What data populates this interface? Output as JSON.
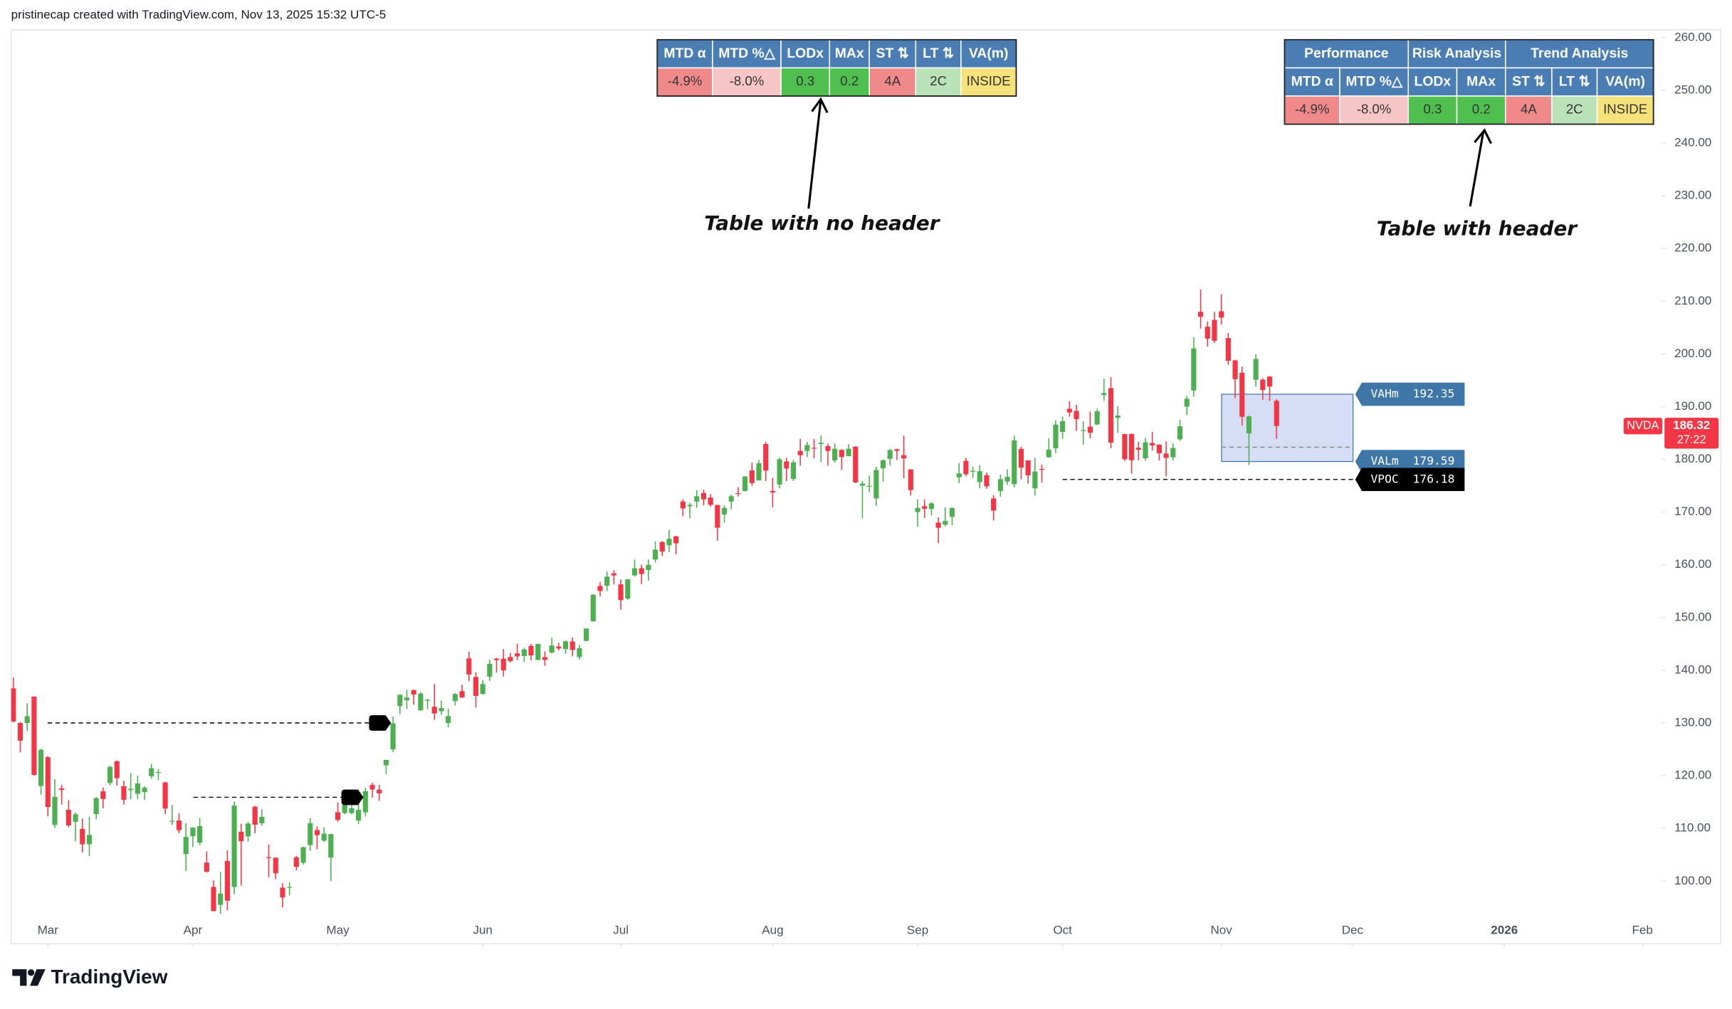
{
  "chart_data": {
    "type": "candlestick",
    "attribution": "pristinecap created with TradingView.com, Nov 13, 2025 15:32 UTC-5",
    "brand": "TradingView",
    "symbol": "NVDA",
    "countdown": "27:22",
    "up_color": "#4caf50",
    "down_color": "#f23645",
    "categories": [
      null,
      null,
      null,
      null,
      null,
      null,
      null,
      null,
      null,
      null,
      null,
      null,
      null,
      null,
      null,
      null,
      null,
      null,
      null,
      null,
      null,
      null,
      null,
      null,
      null,
      null,
      null,
      null,
      null,
      null,
      null,
      null,
      null,
      null,
      null,
      null,
      null,
      null,
      null,
      null,
      null,
      null,
      null,
      null,
      null,
      null,
      null,
      null,
      null,
      null,
      null,
      null,
      null,
      null,
      null,
      null,
      null,
      null,
      null,
      null,
      null,
      null,
      null,
      null,
      null,
      null,
      null,
      null,
      null,
      null,
      null,
      null,
      null,
      null,
      null,
      null,
      null,
      null,
      null,
      null,
      null,
      null,
      null,
      null,
      null,
      null,
      null,
      null,
      null,
      null,
      null,
      null,
      null,
      null,
      null,
      null,
      null,
      null,
      null,
      null,
      null,
      null,
      null,
      null,
      null,
      null,
      null,
      null,
      null,
      null,
      null,
      null,
      null,
      null,
      null,
      null,
      null,
      null,
      null,
      null,
      null,
      null,
      null,
      null,
      null,
      null,
      null,
      null,
      null,
      null,
      null,
      null,
      null,
      null,
      null,
      null,
      null,
      null,
      null,
      null,
      null,
      null,
      null,
      null,
      null,
      null,
      null,
      null,
      null,
      null,
      null,
      null,
      null,
      null,
      null,
      null,
      null,
      null,
      null,
      null,
      null,
      null,
      null,
      null,
      null,
      null,
      null,
      null,
      null,
      null,
      null,
      null,
      null,
      null,
      null,
      null,
      null,
      null,
      null,
      null,
      null,
      null,
      null,
      null
    ],
    "open": [
      136.56,
      129.98,
      129.99,
      135.0,
      118.02,
      123.51,
      110.65,
      117.58,
      113.53,
      111.25,
      109.9,
      106.99,
      112.73,
      117.03,
      118.61,
      122.74,
      118.0,
      117.27,
      116.55,
      116.89,
      119.88,
      120.55,
      118.73,
      111.35,
      111.49,
      105.13,
      108.52,
      107.29,
      103.51,
      98.91,
      95.5,
      103.81,
      98.89,
      109.37,
      108.5,
      114.11,
      110.97,
      104.55,
      104.45,
      98.77,
      98.78,
      104.52,
      103.48,
      106.85,
      109.69,
      107.67,
      104.47,
      113.08,
      112.91,
      112.91,
      111.48,
      113.05,
      118.25,
      117.35,
      121.97,
      124.98,
      133.2,
      134.3,
      136.22,
      132.39,
      134.29,
      133.06,
      132.23,
      130.0,
      134.15,
      136.03,
      142.25,
      138.72,
      135.49,
      138.78,
      142.19,
      142.17,
      142.51,
      143.19,
      142.69,
      144.61,
      141.97,
      142.48,
      143.35,
      144.49,
      144.01,
      145.45,
      142.5,
      145.56,
      149.27,
      155.98,
      156.04,
      158.37,
      156.29,
      153.59,
      158.0,
      159.35,
      159.02,
      161.0,
      164.32,
      163.7,
      165.4,
      172.0,
      171.1,
      172.0,
      173.6,
      172.75,
      171.34,
      169.53,
      172.0,
      173.6,
      174.0,
      177.9,
      176.0,
      182.9,
      174.0,
      175.2,
      179.6,
      176.3,
      181.6,
      181.6,
      182.2,
      182.9,
      182.5,
      179.8,
      181.8,
      180.6,
      182.4,
      175.0,
      174.8,
      172.6,
      178.3,
      180.1,
      181.9,
      180.8,
      178.1,
      170.0,
      171.1,
      170.6,
      168.0,
      167.6,
      169.1,
      176.6,
      179.7,
      177.8,
      175.7,
      177.0,
      172.6,
      173.98,
      175.8,
      175.3,
      181.97,
      179.8,
      174.5,
      178.2,
      180.4,
      182.1,
      185.2,
      189.6,
      189.2,
      185.5,
      186.2,
      186.6,
      192.2,
      193.5,
      187.9,
      184.8,
      184.8,
      182.2,
      180.2,
      183.1,
      182.8,
      181.1,
      180.4,
      183.8,
      189.99,
      193.05,
      207.98,
      205.15,
      206.45,
      208.08,
      203.0,
      198.76,
      196.4,
      184.9,
      195.1,
      195.1,
      195.7,
      191.1
    ],
    "high": [
      138.59,
      130.2,
      133.73,
      135.01,
      125.09,
      123.7,
      119.31,
      118.28,
      115.35,
      113.0,
      111.85,
      112.23,
      116.0,
      117.76,
      121.89,
      122.9,
      119.02,
      120.45,
      120.0,
      117.99,
      122.22,
      121.29,
      118.84,
      114.45,
      112.87,
      110.96,
      110.2,
      111.98,
      105.63,
      100.13,
      101.75,
      105.85,
      115.1,
      110.86,
      111.26,
      114.29,
      113.62,
      106.94,
      104.47,
      99.6,
      99.81,
      104.8,
      106.54,
      111.92,
      110.37,
      110.2,
      108.92,
      114.94,
      114.67,
      114.67,
      114.74,
      117.68,
      118.68,
      118.23,
      123.0,
      131.22,
      135.44,
      136.3,
      136.35,
      135.87,
      134.58,
      137.4,
      134.25,
      132.68,
      135.66,
      137.25,
      143.49,
      139.62,
      138.12,
      142.0,
      142.39,
      144.0,
      143.27,
      145.0,
      144.29,
      144.99,
      145.0,
      143.58,
      146.18,
      145.22,
      145.65,
      146.2,
      144.78,
      147.96,
      154.45,
      156.72,
      158.71,
      158.99,
      157.2,
      157.02,
      160.98,
      160.0,
      161.0,
      164.42,
      164.5,
      166.6,
      165.5,
      172.4,
      171.7,
      174.16,
      174.25,
      173.38,
      171.39,
      171.26,
      173.29,
      174.72,
      176.8,
      179.38,
      179.9,
      183.3,
      176.5,
      180.3,
      180.3,
      179.9,
      183.9,
      183.3,
      183.85,
      184.5,
      183.0,
      183.0,
      181.9,
      182.9,
      182.5,
      175.9,
      176.9,
      178.6,
      180.0,
      182.0,
      182.0,
      184.5,
      178.1,
      172.4,
      172.4,
      171.9,
      169.0,
      170.9,
      170.9,
      179.3,
      180.3,
      178.6,
      178.9,
      177.5,
      173.2,
      177.1,
      178.1,
      184.5,
      182.4,
      179.8,
      180.3,
      179.0,
      184.0,
      187.4,
      188.1,
      191.05,
      190.36,
      187.2,
      189.06,
      189.6,
      195.3,
      195.6,
      190.1,
      184.8,
      184.9,
      183.3,
      184.1,
      185.2,
      182.8,
      183.4,
      183.0,
      187.5,
      192.0,
      203.15,
      212.19,
      206.16,
      207.97,
      211.34,
      203.97,
      198.9,
      197.6,
      188.3,
      199.9,
      195.4,
      195.8,
      191.4
    ],
    "low": [
      130.08,
      124.44,
      128.49,
      120.01,
      116.4,
      112.28,
      110.11,
      114.51,
      110.22,
      107.56,
      105.46,
      104.77,
      111.78,
      113.79,
      118.15,
      118.1,
      114.54,
      115.53,
      115.5,
      115.43,
      119.42,
      119.15,
      112.7,
      110.66,
      109.07,
      101.88,
      106.47,
      106.79,
      101.6,
      94.3,
      93.8,
      94.46,
      97.53,
      99.15,
      107.48,
      109.07,
      110.5,
      100.74,
      100.35,
      95.04,
      97.28,
      102.02,
      103.11,
      105.73,
      106.02,
      107.44,
      99.96,
      111.3,
      112.66,
      112.66,
      110.82,
      112.28,
      115.85,
      115.21,
      120.28,
      124.47,
      131.68,
      132.66,
      133.46,
      132.39,
      132.62,
      130.59,
      131.55,
      129.16,
      133.31,
      134.79,
      137.91,
      132.92,
      135.4,
      137.95,
      139.55,
      138.83,
      141.51,
      141.94,
      141.53,
      141.87,
      141.85,
      140.85,
      143.2,
      143.78,
      143.12,
      142.65,
      142.03,
      145.5,
      149.26,
      154.0,
      155.05,
      156.26,
      151.49,
      153.33,
      157.77,
      156.35,
      157.0,
      160.42,
      161.7,
      162.4,
      162.0,
      169.2,
      168.8,
      170.8,
      171.26,
      171.0,
      164.58,
      167.97,
      170.55,
      172.96,
      173.9,
      175.0,
      176.0,
      175.9,
      170.9,
      174.5,
      175.9,
      175.9,
      178.8,
      180.4,
      180.2,
      179.5,
      178.8,
      179.4,
      178.0,
      180.6,
      175.5,
      168.8,
      173.8,
      171.2,
      175.8,
      178.8,
      179.9,
      176.4,
      173.1,
      167.2,
      168.9,
      169.4,
      164.1,
      167.3,
      167.5,
      175.5,
      176.8,
      176.5,
      174.5,
      174.4,
      168.4,
      172.9,
      175.2,
      174.7,
      176.2,
      175.4,
      173.1,
      175.6,
      180.3,
      181.2,
      183.9,
      188.1,
      185.4,
      182.8,
      184.0,
      186.5,
      191.1,
      182.1,
      185.0,
      179.7,
      177.3,
      179.8,
      179.75,
      181.7,
      179.8,
      176.8,
      179.8,
      183.5,
      188.4,
      191.9,
      204.8,
      201.4,
      202.07,
      205.56,
      197.93,
      191.6,
      186.4,
      178.9,
      193.8,
      191.3,
      191.1,
      183.9
    ],
    "close": [
      130.28,
      126.63,
      131.28,
      120.15,
      124.92,
      114.06,
      115.99,
      117.3,
      110.57,
      112.69,
      106.98,
      108.76,
      115.74,
      115.58,
      121.67,
      119.53,
      115.43,
      117.52,
      118.53,
      117.7,
      121.41,
      120.69,
      113.76,
      111.43,
      109.67,
      108.38,
      110.15,
      110.42,
      101.8,
      94.31,
      97.64,
      96.3,
      114.33,
      107.57,
      110.93,
      110.71,
      112.2,
      104.49,
      101.49,
      96.91,
      98.89,
      102.71,
      106.43,
      111.01,
      108.73,
      109.02,
      108.92,
      111.61,
      114.5,
      113.82,
      113.54,
      117.06,
      117.37,
      116.65,
      123.0,
      129.93,
      135.34,
      134.83,
      135.4,
      135.57,
      134.38,
      131.8,
      132.83,
      131.29,
      135.5,
      134.81,
      139.19,
      135.13,
      137.38,
      141.22,
      141.92,
      139.99,
      141.72,
      142.63,
      143.96,
      142.83,
      145.0,
      141.97,
      144.69,
      144.12,
      145.48,
      143.85,
      144.17,
      147.9,
      154.31,
      155.02,
      157.75,
      157.99,
      153.3,
      157.25,
      159.34,
      158.24,
      160.0,
      162.88,
      162.5,
      164.92,
      164.07,
      170.7,
      171.37,
      173.0,
      172.41,
      171.38,
      167.03,
      170.78,
      173.0,
      173.5,
      176.75,
      175.51,
      179.27,
      177.87,
      173.72,
      180.0,
      178.26,
      179.42,
      180.77,
      182.7,
      182.06,
      183.16,
      181.59,
      182.02,
      180.45,
      182.01,
      175.64,
      175.4,
      174.98,
      177.99,
      179.81,
      181.77,
      181.6,
      180.17,
      174.18,
      170.78,
      170.62,
      171.66,
      167.02,
      168.31,
      170.76,
      177.33,
      177.17,
      177.82,
      177.75,
      174.88,
      170.29,
      176.24,
      176.67,
      183.61,
      178.43,
      176.97,
      177.69,
      178.19,
      181.85,
      186.58,
      187.24,
      188.89,
      187.62,
      185.54,
      185.04,
      189.11,
      192.57,
      183.16,
      188.32,
      180.03,
      179.83,
      181.81,
      183.22,
      182.64,
      181.16,
      180.28,
      182.16,
      186.26,
      191.49,
      201.03,
      207.04,
      202.89,
      202.49,
      206.88,
      198.69,
      195.21,
      188.08,
      188.15,
      199.05,
      193.16,
      193.8,
      186.32
    ],
    "xlim": [
      -0.32,
      238.08
    ],
    "xticks": [
      {
        "value": 5,
        "label": "Mar"
      },
      {
        "value": 26,
        "label": "Apr"
      },
      {
        "value": 47,
        "label": "May"
      },
      {
        "value": 68,
        "label": "Jun"
      },
      {
        "value": 88,
        "label": "Jul"
      },
      {
        "value": 110,
        "label": "Aug"
      },
      {
        "value": 131,
        "label": "Sep"
      },
      {
        "value": 152,
        "label": "Oct"
      },
      {
        "value": 175,
        "label": "Nov"
      },
      {
        "value": 194,
        "label": "Dec"
      },
      {
        "value": 216,
        "label": "2026"
      },
      {
        "value": 236,
        "label": "Feb"
      }
    ],
    "ylim": [
      88.1,
      261.47
    ],
    "yticks": [
      {
        "value": 100,
        "label": "100.00"
      },
      {
        "value": 110,
        "label": "110.00"
      },
      {
        "value": 120,
        "label": "120.00"
      },
      {
        "value": 130,
        "label": "130.00"
      },
      {
        "value": 140,
        "label": "140.00"
      },
      {
        "value": 150,
        "label": "150.00"
      },
      {
        "value": 160,
        "label": "160.00"
      },
      {
        "value": 170,
        "label": "170.00"
      },
      {
        "value": 180,
        "label": "180.00"
      },
      {
        "value": 190,
        "label": "190.00"
      },
      {
        "value": 200,
        "label": "200.00"
      },
      {
        "value": 210,
        "label": "210.00"
      },
      {
        "value": 220,
        "label": "220.00"
      },
      {
        "value": 230,
        "label": "230.00"
      },
      {
        "value": 240,
        "label": "240.00"
      },
      {
        "value": 250,
        "label": "250.00"
      },
      {
        "value": 260,
        "label": "260.00"
      }
    ],
    "volume_profile": [
      {
        "name": "VAHm",
        "value": 192.35,
        "color": "#3f76a8"
      },
      {
        "name": "VALm",
        "value": 179.59,
        "color": "#3f76a8"
      },
      {
        "name": "VPOC",
        "value": 176.18,
        "color": "#000000"
      }
    ],
    "value_area_color": "#d6def5",
    "dashed_levels": [
      182.3,
      130.0,
      115.9
    ],
    "annotations": [
      "Table with no header",
      "Table with header"
    ],
    "tables": [
      {
        "header_color": "#4a7db3",
        "header": [
          "MTD α",
          "MTD %△",
          "LODx",
          "MAx",
          "ST ⇅",
          "LT ⇅",
          "VA(m)"
        ],
        "cells": [
          {
            "text": "-4.9%",
            "color": "#f08a8a"
          },
          {
            "text": "-8.0%",
            "color": "#f6c5c5"
          },
          {
            "text": "0.3",
            "color": "#4fc04f"
          },
          {
            "text": "0.2",
            "color": "#4fc04f"
          },
          {
            "text": "4A",
            "color": "#f08a8a"
          },
          {
            "text": "2C",
            "color": "#b9e2b9"
          },
          {
            "text": "INSIDE",
            "color": "#f6e27a"
          }
        ]
      },
      {
        "header_color": "#4a7db3",
        "groups": [
          "Performance",
          "Risk Analysis",
          "Trend Analysis"
        ],
        "header": [
          "MTD α",
          "MTD %△",
          "LODx",
          "MAx",
          "ST ⇅",
          "LT ⇅",
          "VA(m)"
        ],
        "cells": [
          {
            "text": "-4.9%",
            "color": "#f08a8a"
          },
          {
            "text": "-8.0%",
            "color": "#f6c5c5"
          },
          {
            "text": "0.3",
            "color": "#4fc04f"
          },
          {
            "text": "0.2",
            "color": "#4fc04f"
          },
          {
            "text": "4A",
            "color": "#f08a8a"
          },
          {
            "text": "2C",
            "color": "#b9e2b9"
          },
          {
            "text": "INSIDE",
            "color": "#f6e27a"
          }
        ]
      }
    ]
  }
}
